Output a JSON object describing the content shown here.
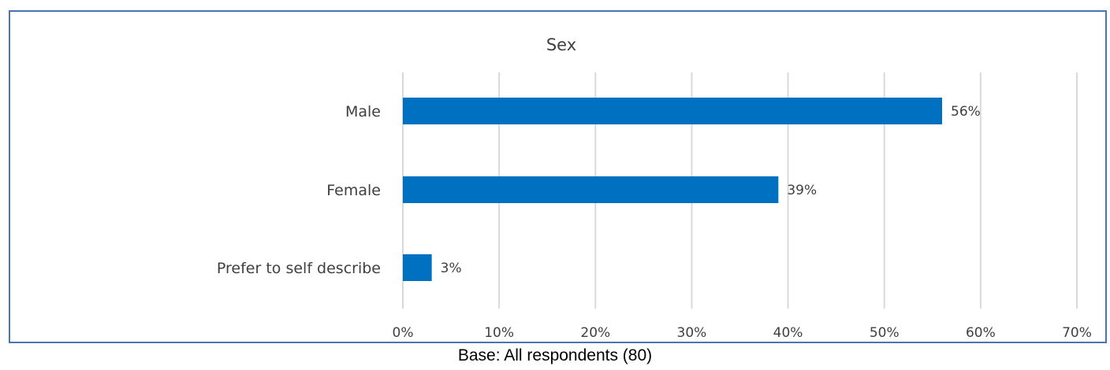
{
  "chart_data": {
    "type": "bar",
    "orientation": "horizontal",
    "title": "Sex",
    "categories": [
      "Male",
      "Female",
      "Prefer to self describe"
    ],
    "values": [
      56,
      39,
      3
    ],
    "data_labels": [
      "56%",
      "39%",
      "3%"
    ],
    "xlim": [
      0,
      70
    ],
    "x_ticks": [
      0,
      10,
      20,
      30,
      40,
      50,
      60,
      70
    ],
    "x_tick_labels": [
      "0%",
      "10%",
      "20%",
      "30%",
      "40%",
      "50%",
      "60%",
      "70%"
    ],
    "grid": true,
    "legend": "none",
    "bar_color": "#0070c0",
    "grid_color": "#d9d9d9"
  },
  "footnote": "Base: All respondents (80)"
}
